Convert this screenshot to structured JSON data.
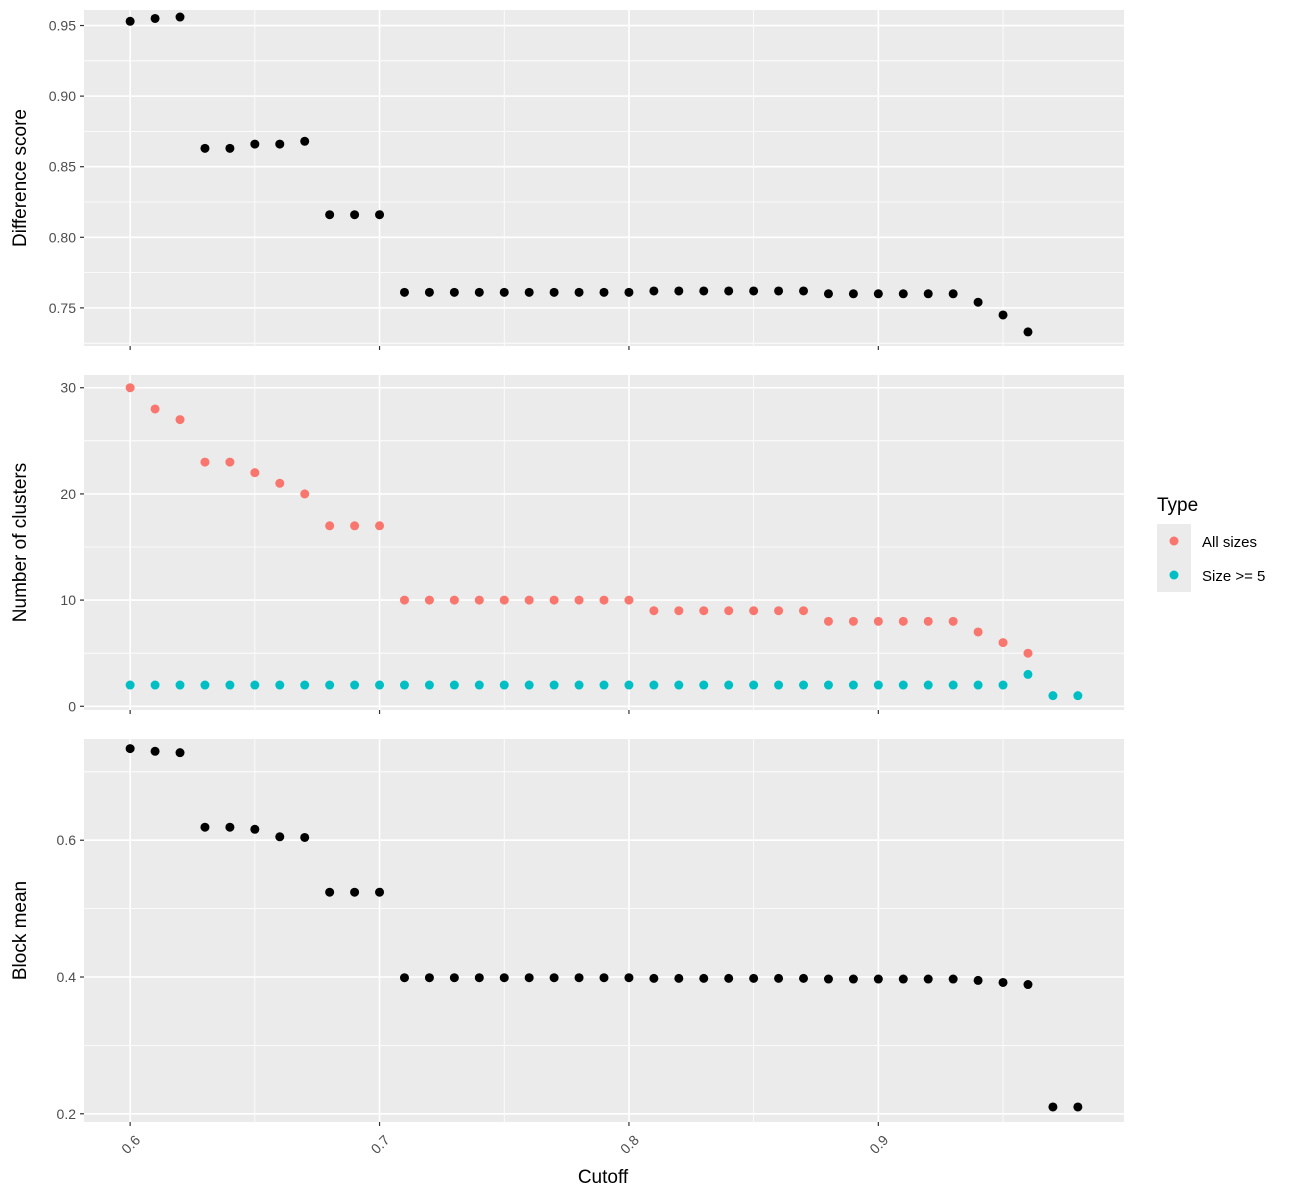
{
  "chart_data": {
    "type": "scatter",
    "x_label": "Cutoff",
    "x_ticks": [
      "0.6",
      "0.7",
      "0.8",
      "0.9"
    ],
    "x_tick_values": [
      0.6,
      0.7,
      0.8,
      0.9
    ],
    "x_range": [
      0.5815,
      0.9985
    ],
    "grid": true,
    "legend_position": "right",
    "legend": {
      "title": "Type",
      "items": [
        {
          "label": "All sizes",
          "color": "#F8766D"
        },
        {
          "label": "Size >= 5",
          "color": "#00BFC4"
        }
      ]
    },
    "panels": [
      {
        "name": "difference-score",
        "y_label": "Difference score",
        "y_ticks": [
          "0.75",
          "0.80",
          "0.85",
          "0.90",
          "0.95"
        ],
        "y_tick_values": [
          0.75,
          0.8,
          0.85,
          0.9,
          0.95
        ],
        "y_range": [
          0.723,
          0.961
        ],
        "series": [
          {
            "color": "#000000",
            "x": [
              0.6,
              0.61,
              0.62,
              0.63,
              0.64,
              0.65,
              0.66,
              0.67,
              0.68,
              0.69,
              0.7,
              0.71,
              0.72,
              0.73,
              0.74,
              0.75,
              0.76,
              0.77,
              0.78,
              0.79,
              0.8,
              0.81,
              0.82,
              0.83,
              0.84,
              0.85,
              0.86,
              0.87,
              0.88,
              0.89,
              0.9,
              0.91,
              0.92,
              0.93,
              0.94,
              0.95,
              0.96
            ],
            "y": [
              0.953,
              0.955,
              0.956,
              0.863,
              0.863,
              0.866,
              0.866,
              0.868,
              0.816,
              0.816,
              0.816,
              0.761,
              0.761,
              0.761,
              0.761,
              0.761,
              0.761,
              0.761,
              0.761,
              0.761,
              0.761,
              0.762,
              0.762,
              0.762,
              0.762,
              0.762,
              0.762,
              0.762,
              0.76,
              0.76,
              0.76,
              0.76,
              0.76,
              0.76,
              0.754,
              0.745,
              0.733
            ]
          }
        ]
      },
      {
        "name": "number-of-clusters",
        "y_label": "Number of clusters",
        "y_ticks": [
          "0",
          "10",
          "20",
          "30"
        ],
        "y_tick_values": [
          0,
          10,
          20,
          30
        ],
        "y_range": [
          -0.35,
          31.2
        ],
        "series": [
          {
            "name": "All sizes",
            "color": "#F8766D",
            "x": [
              0.6,
              0.61,
              0.62,
              0.63,
              0.64,
              0.65,
              0.66,
              0.67,
              0.68,
              0.69,
              0.7,
              0.71,
              0.72,
              0.73,
              0.74,
              0.75,
              0.76,
              0.77,
              0.78,
              0.79,
              0.8,
              0.81,
              0.82,
              0.83,
              0.84,
              0.85,
              0.86,
              0.87,
              0.88,
              0.89,
              0.9,
              0.91,
              0.92,
              0.93,
              0.94,
              0.95,
              0.96
            ],
            "y": [
              30,
              28,
              27,
              23,
              23,
              22,
              21,
              20,
              17,
              17,
              17,
              10,
              10,
              10,
              10,
              10,
              10,
              10,
              10,
              10,
              10,
              9,
              9,
              9,
              9,
              9,
              9,
              9,
              8,
              8,
              8,
              8,
              8,
              8,
              7,
              6,
              5
            ]
          },
          {
            "name": "Size >= 5",
            "color": "#00BFC4",
            "x": [
              0.6,
              0.61,
              0.62,
              0.63,
              0.64,
              0.65,
              0.66,
              0.67,
              0.68,
              0.69,
              0.7,
              0.71,
              0.72,
              0.73,
              0.74,
              0.75,
              0.76,
              0.77,
              0.78,
              0.79,
              0.8,
              0.81,
              0.82,
              0.83,
              0.84,
              0.85,
              0.86,
              0.87,
              0.88,
              0.89,
              0.9,
              0.91,
              0.92,
              0.93,
              0.94,
              0.95,
              0.96,
              0.97,
              0.98
            ],
            "y": [
              2,
              2,
              2,
              2,
              2,
              2,
              2,
              2,
              2,
              2,
              2,
              2,
              2,
              2,
              2,
              2,
              2,
              2,
              2,
              2,
              2,
              2,
              2,
              2,
              2,
              2,
              2,
              2,
              2,
              2,
              2,
              2,
              2,
              2,
              2,
              2,
              3,
              1,
              1
            ]
          }
        ]
      },
      {
        "name": "block-mean",
        "y_label": "Block mean",
        "y_ticks": [
          "0.2",
          "0.4",
          "0.6"
        ],
        "y_tick_values": [
          0.2,
          0.4,
          0.6
        ],
        "y_range": [
          0.188,
          0.748
        ],
        "series": [
          {
            "color": "#000000",
            "x": [
              0.6,
              0.61,
              0.62,
              0.63,
              0.64,
              0.65,
              0.66,
              0.67,
              0.68,
              0.69,
              0.7,
              0.71,
              0.72,
              0.73,
              0.74,
              0.75,
              0.76,
              0.77,
              0.78,
              0.79,
              0.8,
              0.81,
              0.82,
              0.83,
              0.84,
              0.85,
              0.86,
              0.87,
              0.88,
              0.89,
              0.9,
              0.91,
              0.92,
              0.93,
              0.94,
              0.95,
              0.96,
              0.97,
              0.98
            ],
            "y": [
              0.734,
              0.73,
              0.728,
              0.619,
              0.619,
              0.616,
              0.605,
              0.604,
              0.524,
              0.524,
              0.524,
              0.399,
              0.399,
              0.399,
              0.399,
              0.399,
              0.399,
              0.399,
              0.399,
              0.399,
              0.399,
              0.398,
              0.398,
              0.398,
              0.398,
              0.398,
              0.398,
              0.398,
              0.397,
              0.397,
              0.397,
              0.397,
              0.397,
              0.397,
              0.395,
              0.392,
              0.389,
              0.21,
              0.21
            ]
          }
        ]
      }
    ]
  }
}
